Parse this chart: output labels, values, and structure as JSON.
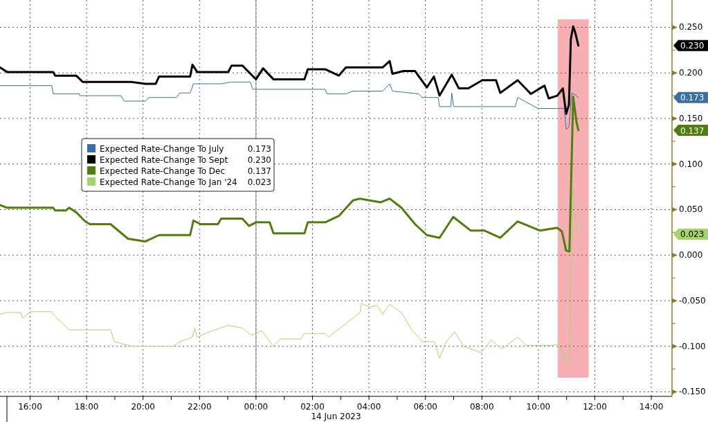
{
  "chart_data": {
    "type": "line",
    "xlabel": "14 Jun 2023",
    "legend": "left",
    "grid": true,
    "xlim": [
      "2023-06-13T14:56",
      "2023-06-14T14:44"
    ],
    "ylim": [
      -0.155,
      0.28
    ],
    "xticks": [
      {
        "value": "2023-06-13T16:00",
        "label": "16:00"
      },
      {
        "value": "2023-06-13T17:00",
        "label": null
      },
      {
        "value": "2023-06-13T18:00",
        "label": "18:00"
      },
      {
        "value": "2023-06-13T19:00",
        "label": null
      },
      {
        "value": "2023-06-13T20:00",
        "label": "20:00"
      },
      {
        "value": "2023-06-13T21:00",
        "label": null
      },
      {
        "value": "2023-06-13T22:00",
        "label": "22:00"
      },
      {
        "value": "2023-06-13T23:00",
        "label": null
      },
      {
        "value": "2023-06-14T00:00",
        "label": "00:00"
      },
      {
        "value": "2023-06-14T01:00",
        "label": null
      },
      {
        "value": "2023-06-14T02:00",
        "label": "02:00"
      },
      {
        "value": "2023-06-14T03:00",
        "label": null
      },
      {
        "value": "2023-06-14T04:00",
        "label": "04:00"
      },
      {
        "value": "2023-06-14T05:00",
        "label": null
      },
      {
        "value": "2023-06-14T06:00",
        "label": "06:00"
      },
      {
        "value": "2023-06-14T07:00",
        "label": null
      },
      {
        "value": "2023-06-14T08:00",
        "label": "08:00"
      },
      {
        "value": "2023-06-14T09:00",
        "label": null
      },
      {
        "value": "2023-06-14T10:00",
        "label": "10:00"
      },
      {
        "value": "2023-06-14T11:00",
        "label": null
      },
      {
        "value": "2023-06-14T12:00",
        "label": "12:00"
      },
      {
        "value": "2023-06-14T13:00",
        "label": null
      },
      {
        "value": "2023-06-14T14:00",
        "label": "14:00"
      }
    ],
    "yticks": [
      {
        "value": -0.15,
        "label": "-0.150"
      },
      {
        "value": -0.125,
        "label": null
      },
      {
        "value": -0.1,
        "label": "-0.100"
      },
      {
        "value": -0.075,
        "label": null
      },
      {
        "value": -0.05,
        "label": "-0.050"
      },
      {
        "value": -0.025,
        "label": null
      },
      {
        "value": 0,
        "label": "0.000"
      },
      {
        "value": 0.025,
        "label": null
      },
      {
        "value": 0.05,
        "label": "0.050"
      },
      {
        "value": 0.075,
        "label": null
      },
      {
        "value": 0.1,
        "label": "0.100"
      },
      {
        "value": 0.125,
        "label": null
      },
      {
        "value": 0.15,
        "label": "0.150"
      },
      {
        "value": 0.175,
        "label": null
      },
      {
        "value": 0.2,
        "label": "0.200"
      },
      {
        "value": 0.225,
        "label": null
      },
      {
        "value": 0.25,
        "label": "0.250"
      }
    ],
    "ref_lines": [
      {
        "axis": "x",
        "value": "2023-06-14T00:00",
        "color": "#808080"
      }
    ],
    "bands": [
      {
        "axis": "x",
        "from": "2023-06-14T10:41",
        "to": "2023-06-14T11:47",
        "color": "#f6b0b4"
      }
    ],
    "annotations": [
      "0.173",
      "0.230",
      "0.137",
      "0.023"
    ],
    "series": [
      {
        "name": "Expected Rate-Change To July",
        "color": "#3a6ea5",
        "x": [
          "2023-06-13T14:56",
          "2023-06-13T16:46",
          "2023-06-13T16:49",
          "2023-06-13T17:45",
          "2023-06-13T17:46",
          "2023-06-13T19:13",
          "2023-06-13T19:20",
          "2023-06-13T20:05",
          "2023-06-13T20:12",
          "2023-06-13T21:11",
          "2023-06-13T21:18",
          "2023-06-13T21:40",
          "2023-06-13T21:47",
          "2023-06-13T22:46",
          "2023-06-13T23:08",
          "2023-06-13T23:48",
          "2023-06-13T23:53",
          "2023-06-14T02:27",
          "2023-06-14T02:31",
          "2023-06-14T03:11",
          "2023-06-14T03:26",
          "2023-06-14T04:29",
          "2023-06-14T04:44",
          "2023-06-14T04:50",
          "2023-06-14T05:46",
          "2023-06-14T05:53",
          "2023-06-14T06:27",
          "2023-06-14T06:30",
          "2023-06-14T06:54",
          "2023-06-14T06:56",
          "2023-06-14T07:00",
          "2023-06-14T09:11",
          "2023-06-14T09:16",
          "2023-06-14T09:34",
          "2023-06-14T09:59",
          "2023-06-14T10:55",
          "2023-06-14T10:59",
          "2023-06-14T11:05",
          "2023-06-14T11:11",
          "2023-06-14T11:18",
          "2023-06-14T11:25"
        ],
        "values": [
          0.186,
          0.186,
          0.177,
          0.177,
          0.175,
          0.175,
          0.169,
          0.169,
          0.173,
          0.173,
          0.178,
          0.178,
          0.188,
          0.188,
          0.19,
          0.19,
          0.182,
          0.182,
          0.177,
          0.177,
          0.18,
          0.18,
          0.188,
          0.18,
          0.177,
          0.173,
          0.173,
          0.163,
          0.163,
          0.178,
          0.163,
          0.163,
          0.173,
          0.168,
          0.161,
          0.161,
          0.138,
          0.141,
          0.178,
          0.176,
          0.173
        ]
      },
      {
        "name": "Expected Rate-Change To Sept",
        "color": "#000000",
        "x": [
          "2023-06-13T14:56",
          "2023-06-13T15:11",
          "2023-06-13T16:49",
          "2023-06-13T16:53",
          "2023-06-13T17:38",
          "2023-06-13T17:52",
          "2023-06-13T19:35",
          "2023-06-13T20:05",
          "2023-06-13T20:27",
          "2023-06-13T20:34",
          "2023-06-13T21:40",
          "2023-06-13T21:45",
          "2023-06-13T21:55",
          "2023-06-13T23:01",
          "2023-06-13T23:08",
          "2023-06-13T23:31",
          "2023-06-14T00:00",
          "2023-06-14T00:15",
          "2023-06-14T00:37",
          "2023-06-14T01:43",
          "2023-06-14T01:50",
          "2023-06-14T02:27",
          "2023-06-14T02:56",
          "2023-06-14T03:11",
          "2023-06-14T03:41",
          "2023-06-14T04:29",
          "2023-06-14T04:44",
          "2023-06-14T04:50",
          "2023-06-14T05:13",
          "2023-06-14T05:38",
          "2023-06-14T06:03",
          "2023-06-14T06:18",
          "2023-06-14T06:30",
          "2023-06-14T06:56",
          "2023-06-14T07:11",
          "2023-06-14T07:31",
          "2023-06-14T08:01",
          "2023-06-14T08:30",
          "2023-06-14T08:39",
          "2023-06-14T09:16",
          "2023-06-14T09:44",
          "2023-06-14T10:13",
          "2023-06-14T10:22",
          "2023-06-14T10:40",
          "2023-06-14T10:52",
          "2023-06-14T10:59",
          "2023-06-14T11:05",
          "2023-06-14T11:09",
          "2023-06-14T11:14",
          "2023-06-14T11:18",
          "2023-06-14T11:25"
        ],
        "values": [
          0.206,
          0.201,
          0.201,
          0.197,
          0.197,
          0.19,
          0.19,
          0.188,
          0.188,
          0.196,
          0.196,
          0.209,
          0.201,
          0.201,
          0.208,
          0.208,
          0.193,
          0.205,
          0.193,
          0.193,
          0.204,
          0.204,
          0.197,
          0.206,
          0.206,
          0.206,
          0.213,
          0.199,
          0.202,
          0.202,
          0.184,
          0.196,
          0.175,
          0.198,
          0.183,
          0.183,
          0.192,
          0.192,
          0.178,
          0.192,
          0.177,
          0.186,
          0.172,
          0.175,
          0.183,
          0.155,
          0.165,
          0.237,
          0.251,
          0.245,
          0.23
        ]
      },
      {
        "name": "Expected Rate-Change To Dec",
        "color": "#4f7d0e",
        "x": [
          "2023-06-13T14:56",
          "2023-06-13T15:11",
          "2023-06-13T16:49",
          "2023-06-13T16:53",
          "2023-06-13T17:16",
          "2023-06-13T17:23",
          "2023-06-13T17:38",
          "2023-06-13T17:57",
          "2023-06-13T18:07",
          "2023-06-13T18:51",
          "2023-06-13T19:28",
          "2023-06-13T20:05",
          "2023-06-13T20:34",
          "2023-06-13T21:40",
          "2023-06-13T21:47",
          "2023-06-13T22:02",
          "2023-06-13T22:39",
          "2023-06-13T22:46",
          "2023-06-13T23:31",
          "2023-06-13T23:45",
          "2023-06-14T00:00",
          "2023-06-14T00:29",
          "2023-06-14T00:37",
          "2023-06-14T01:43",
          "2023-06-14T01:50",
          "2023-06-14T02:27",
          "2023-06-14T02:56",
          "2023-06-14T03:26",
          "2023-06-14T03:41",
          "2023-06-14T04:02",
          "2023-06-14T04:25",
          "2023-06-14T04:44",
          "2023-06-14T05:09",
          "2023-06-14T05:38",
          "2023-06-14T06:03",
          "2023-06-14T06:30",
          "2023-06-14T06:59",
          "2023-06-14T07:36",
          "2023-06-14T08:05",
          "2023-06-14T08:39",
          "2023-06-14T09:16",
          "2023-06-14T10:03",
          "2023-06-14T10:40",
          "2023-06-14T10:50",
          "2023-06-14T10:59",
          "2023-06-14T11:06",
          "2023-06-14T11:14",
          "2023-06-14T11:21",
          "2023-06-14T11:25"
        ],
        "values": [
          0.055,
          0.052,
          0.052,
          0.049,
          0.049,
          0.052,
          0.047,
          0.037,
          0.034,
          0.034,
          0.018,
          0.015,
          0.022,
          0.022,
          0.038,
          0.034,
          0.034,
          0.04,
          0.04,
          0.032,
          0.036,
          0.036,
          0.024,
          0.024,
          0.036,
          0.036,
          0.043,
          0.06,
          0.062,
          0.06,
          0.058,
          0.062,
          0.052,
          0.034,
          0.022,
          0.019,
          0.042,
          0.027,
          0.027,
          0.019,
          0.037,
          0.027,
          0.03,
          0.026,
          0.005,
          0.004,
          0.174,
          0.146,
          0.137
        ]
      },
      {
        "name": "Expected Rate-Change To Jan '24",
        "color": "#a6d46a",
        "x": [
          "2023-06-13T14:56",
          "2023-06-13T15:11",
          "2023-06-13T15:40",
          "2023-06-13T15:44",
          "2023-06-13T16:02",
          "2023-06-13T16:46",
          "2023-06-13T16:53",
          "2023-06-13T17:23",
          "2023-06-13T18:51",
          "2023-06-13T18:59",
          "2023-06-13T19:35",
          "2023-06-13T21:04",
          "2023-06-13T21:18",
          "2023-06-13T21:45",
          "2023-06-13T21:50",
          "2023-06-13T21:55",
          "2023-06-13T22:17",
          "2023-06-13T23:01",
          "2023-06-13T23:31",
          "2023-06-13T23:50",
          "2023-06-14T00:12",
          "2023-06-14T00:37",
          "2023-06-14T00:52",
          "2023-06-14T01:35",
          "2023-06-14T01:43",
          "2023-06-14T02:27",
          "2023-06-14T02:34",
          "2023-06-14T03:11",
          "2023-06-14T03:41",
          "2023-06-14T03:44",
          "2023-06-14T04:02",
          "2023-06-14T04:17",
          "2023-06-14T04:29",
          "2023-06-14T04:44",
          "2023-06-14T05:09",
          "2023-06-14T05:31",
          "2023-06-14T05:53",
          "2023-06-14T06:19",
          "2023-06-14T06:30",
          "2023-06-14T06:44",
          "2023-06-14T07:02",
          "2023-06-14T07:21",
          "2023-06-14T07:58",
          "2023-06-14T08:20",
          "2023-06-14T08:42",
          "2023-06-14T09:16",
          "2023-06-14T09:34",
          "2023-06-14T10:32",
          "2023-06-14T10:44",
          "2023-06-14T10:55",
          "2023-06-14T11:05",
          "2023-06-14T11:14",
          "2023-06-14T11:21",
          "2023-06-14T11:25"
        ],
        "values": [
          -0.065,
          -0.063,
          -0.063,
          -0.069,
          -0.062,
          -0.062,
          -0.067,
          -0.082,
          -0.082,
          -0.095,
          -0.1,
          -0.1,
          -0.095,
          -0.09,
          -0.08,
          -0.09,
          -0.085,
          -0.077,
          -0.08,
          -0.088,
          -0.083,
          -0.1,
          -0.092,
          -0.092,
          -0.086,
          -0.086,
          -0.09,
          -0.075,
          -0.063,
          -0.053,
          -0.057,
          -0.055,
          -0.065,
          -0.054,
          -0.063,
          -0.082,
          -0.095,
          -0.095,
          -0.113,
          -0.095,
          -0.084,
          -0.1,
          -0.107,
          -0.093,
          -0.103,
          -0.09,
          -0.099,
          -0.099,
          -0.097,
          -0.116,
          -0.116,
          0.072,
          0.027,
          0.023
        ]
      }
    ]
  }
}
